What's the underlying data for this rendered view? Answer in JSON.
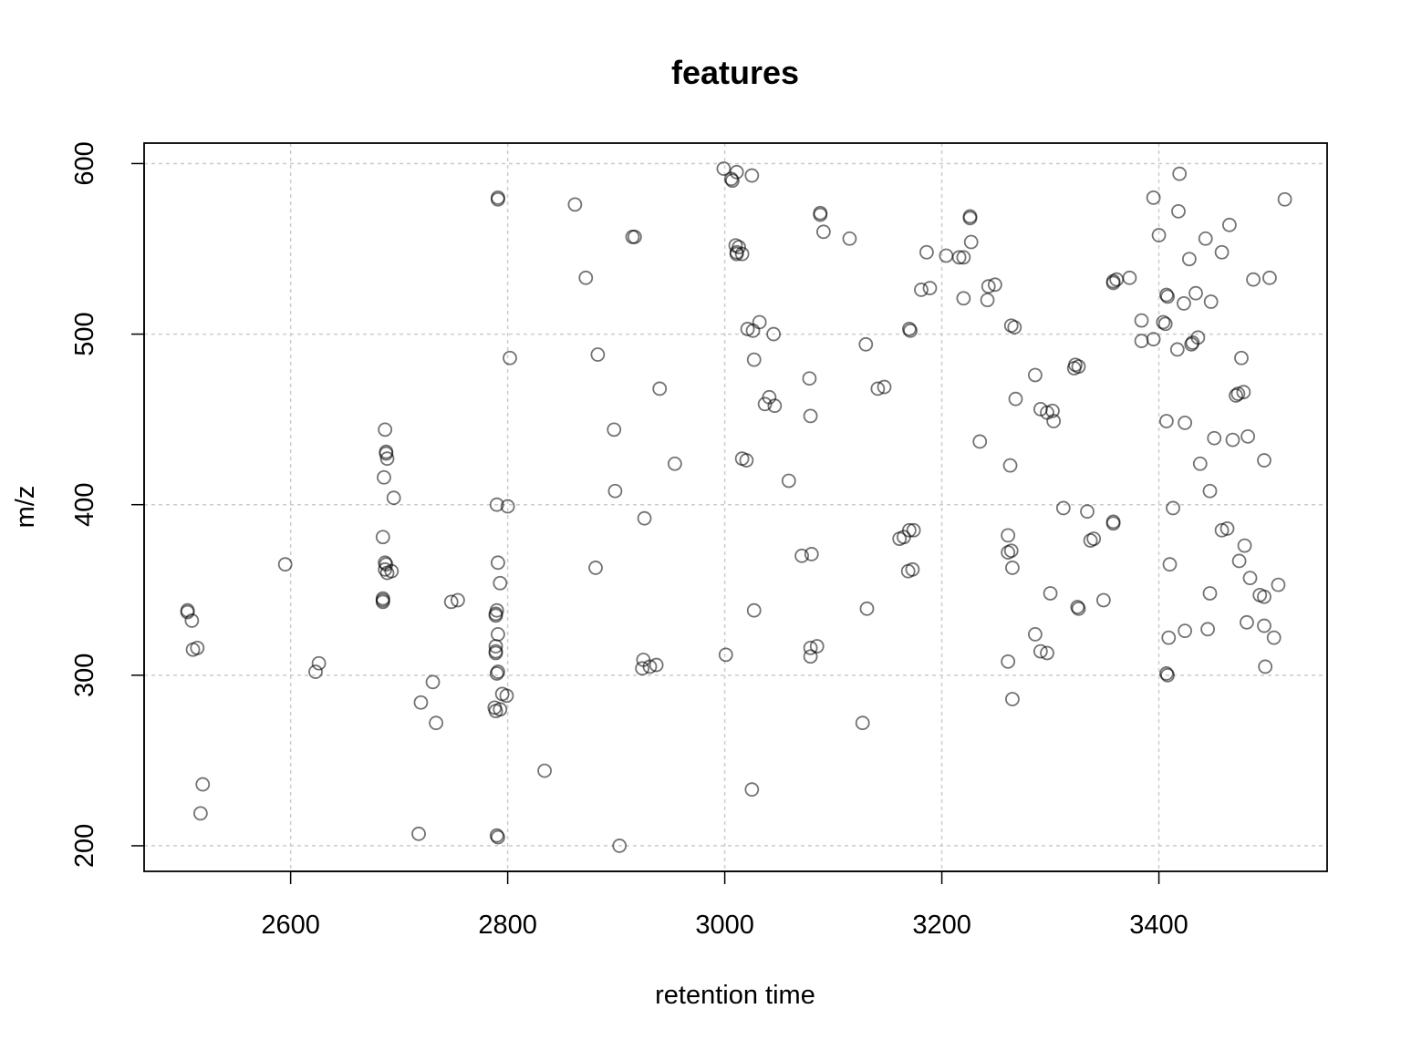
{
  "chart_data": {
    "type": "scatter",
    "title": "features",
    "xlabel": "retention time",
    "ylabel": "m/z",
    "xlim": [
      2465,
      3555
    ],
    "ylim": [
      185,
      612
    ],
    "x_ticks": [
      2600,
      2800,
      3000,
      3200,
      3400
    ],
    "y_ticks": [
      200,
      300,
      400,
      500,
      600
    ],
    "x_tick_labels": [
      "2600",
      "2800",
      "3000",
      "3200",
      "3400"
    ],
    "y_tick_labels": [
      "200",
      "300",
      "400",
      "500",
      "600"
    ],
    "grid": true,
    "point_style": "open-circle",
    "point_color": "#000000",
    "points": [
      [
        2505,
        338
      ],
      [
        2505,
        337
      ],
      [
        2509,
        332
      ],
      [
        2510,
        315
      ],
      [
        2514,
        316
      ],
      [
        2519,
        236
      ],
      [
        2517,
        219
      ],
      [
        2595,
        365
      ],
      [
        2623,
        302
      ],
      [
        2626,
        307
      ],
      [
        2685,
        381
      ],
      [
        2687,
        444
      ],
      [
        2688,
        431
      ],
      [
        2688,
        430
      ],
      [
        2689,
        427
      ],
      [
        2686,
        416
      ],
      [
        2695,
        404
      ],
      [
        2687,
        366
      ],
      [
        2688,
        365
      ],
      [
        2687,
        362
      ],
      [
        2689,
        360
      ],
      [
        2693,
        361
      ],
      [
        2685,
        345
      ],
      [
        2685,
        344
      ],
      [
        2685,
        343
      ],
      [
        2718,
        207
      ],
      [
        2720,
        284
      ],
      [
        2731,
        296
      ],
      [
        2734,
        272
      ],
      [
        2748,
        343
      ],
      [
        2754,
        344
      ],
      [
        2791,
        580
      ],
      [
        2791,
        579
      ],
      [
        2790,
        400
      ],
      [
        2800,
        399
      ],
      [
        2802,
        486
      ],
      [
        2791,
        366
      ],
      [
        2793,
        354
      ],
      [
        2790,
        338
      ],
      [
        2789,
        336
      ],
      [
        2789,
        335
      ],
      [
        2791,
        324
      ],
      [
        2789,
        317
      ],
      [
        2789,
        314
      ],
      [
        2789,
        313
      ],
      [
        2791,
        302
      ],
      [
        2790,
        301
      ],
      [
        2795,
        289
      ],
      [
        2799,
        288
      ],
      [
        2788,
        281
      ],
      [
        2789,
        279
      ],
      [
        2793,
        280
      ],
      [
        2790,
        206
      ],
      [
        2791,
        205
      ],
      [
        2834,
        244
      ],
      [
        2862,
        576
      ],
      [
        2872,
        533
      ],
      [
        2883,
        488
      ],
      [
        2881,
        363
      ],
      [
        2898,
        444
      ],
      [
        2899,
        408
      ],
      [
        2903,
        200
      ],
      [
        2915,
        557
      ],
      [
        2917,
        557
      ],
      [
        2925,
        309
      ],
      [
        2926,
        392
      ],
      [
        2924,
        304
      ],
      [
        2931,
        305
      ],
      [
        2937,
        306
      ],
      [
        2940,
        468
      ],
      [
        2954,
        424
      ],
      [
        2999,
        597
      ],
      [
        3001,
        312
      ],
      [
        3006,
        591
      ],
      [
        3007,
        590
      ],
      [
        3011,
        595
      ],
      [
        3025,
        593
      ],
      [
        3010,
        552
      ],
      [
        3013,
        551
      ],
      [
        3011,
        548
      ],
      [
        3011,
        547
      ],
      [
        3016,
        547
      ],
      [
        3016,
        427
      ],
      [
        3020,
        426
      ],
      [
        3021,
        503
      ],
      [
        3026,
        502
      ],
      [
        3032,
        507
      ],
      [
        3027,
        485
      ],
      [
        3037,
        459
      ],
      [
        3041,
        463
      ],
      [
        3045,
        500
      ],
      [
        3046,
        458
      ],
      [
        3059,
        414
      ],
      [
        3025,
        233
      ],
      [
        3027,
        338
      ],
      [
        3071,
        370
      ],
      [
        3080,
        371
      ],
      [
        3078,
        474
      ],
      [
        3079,
        452
      ],
      [
        3079,
        316
      ],
      [
        3085,
        317
      ],
      [
        3079,
        311
      ],
      [
        3088,
        571
      ],
      [
        3088,
        570
      ],
      [
        3091,
        560
      ],
      [
        3115,
        556
      ],
      [
        3127,
        272
      ],
      [
        3130,
        494
      ],
      [
        3131,
        339
      ],
      [
        3141,
        468
      ],
      [
        3147,
        469
      ],
      [
        3161,
        380
      ],
      [
        3165,
        381
      ],
      [
        3169,
        361
      ],
      [
        3173,
        362
      ],
      [
        3170,
        385
      ],
      [
        3174,
        385
      ],
      [
        3170,
        503
      ],
      [
        3171,
        502
      ],
      [
        3181,
        526
      ],
      [
        3186,
        548
      ],
      [
        3189,
        527
      ],
      [
        3204,
        546
      ],
      [
        3216,
        545
      ],
      [
        3220,
        545
      ],
      [
        3220,
        521
      ],
      [
        3226,
        569
      ],
      [
        3226,
        568
      ],
      [
        3227,
        554
      ],
      [
        3235,
        437
      ],
      [
        3242,
        520
      ],
      [
        3243,
        528
      ],
      [
        3249,
        529
      ],
      [
        3261,
        382
      ],
      [
        3261,
        372
      ],
      [
        3264,
        373
      ],
      [
        3261,
        308
      ],
      [
        3263,
        423
      ],
      [
        3265,
        363
      ],
      [
        3265,
        286
      ],
      [
        3264,
        505
      ],
      [
        3267,
        504
      ],
      [
        3268,
        462
      ],
      [
        3286,
        476
      ],
      [
        3286,
        324
      ],
      [
        3291,
        456
      ],
      [
        3291,
        314
      ],
      [
        3297,
        454
      ],
      [
        3302,
        455
      ],
      [
        3297,
        313
      ],
      [
        3300,
        348
      ],
      [
        3303,
        449
      ],
      [
        3312,
        398
      ],
      [
        3322,
        480
      ],
      [
        3323,
        482
      ],
      [
        3326,
        481
      ],
      [
        3325,
        340
      ],
      [
        3326,
        339
      ],
      [
        3334,
        396
      ],
      [
        3337,
        379
      ],
      [
        3340,
        380
      ],
      [
        3349,
        344
      ],
      [
        3358,
        531
      ],
      [
        3358,
        530
      ],
      [
        3361,
        532
      ],
      [
        3358,
        390
      ],
      [
        3358,
        389
      ],
      [
        3373,
        533
      ],
      [
        3384,
        508
      ],
      [
        3384,
        496
      ],
      [
        3395,
        580
      ],
      [
        3395,
        497
      ],
      [
        3400,
        558
      ],
      [
        3404,
        507
      ],
      [
        3406,
        506
      ],
      [
        3407,
        523
      ],
      [
        3408,
        522
      ],
      [
        3407,
        449
      ],
      [
        3407,
        301
      ],
      [
        3408,
        300
      ],
      [
        3409,
        322
      ],
      [
        3410,
        365
      ],
      [
        3413,
        398
      ],
      [
        3417,
        491
      ],
      [
        3418,
        572
      ],
      [
        3419,
        594
      ],
      [
        3423,
        518
      ],
      [
        3424,
        448
      ],
      [
        3424,
        326
      ],
      [
        3428,
        544
      ],
      [
        3430,
        494
      ],
      [
        3431,
        495
      ],
      [
        3436,
        498
      ],
      [
        3434,
        524
      ],
      [
        3438,
        424
      ],
      [
        3443,
        556
      ],
      [
        3445,
        327
      ],
      [
        3447,
        408
      ],
      [
        3447,
        348
      ],
      [
        3448,
        519
      ],
      [
        3451,
        439
      ],
      [
        3458,
        548
      ],
      [
        3458,
        385
      ],
      [
        3463,
        386
      ],
      [
        3465,
        564
      ],
      [
        3468,
        438
      ],
      [
        3471,
        464
      ],
      [
        3473,
        465
      ],
      [
        3478,
        466
      ],
      [
        3474,
        367
      ],
      [
        3476,
        486
      ],
      [
        3479,
        376
      ],
      [
        3481,
        331
      ],
      [
        3482,
        440
      ],
      [
        3484,
        357
      ],
      [
        3487,
        532
      ],
      [
        3493,
        347
      ],
      [
        3497,
        346
      ],
      [
        3497,
        426
      ],
      [
        3497,
        329
      ],
      [
        3498,
        305
      ],
      [
        3502,
        533
      ],
      [
        3506,
        322
      ],
      [
        3510,
        353
      ],
      [
        3516,
        579
      ]
    ]
  }
}
